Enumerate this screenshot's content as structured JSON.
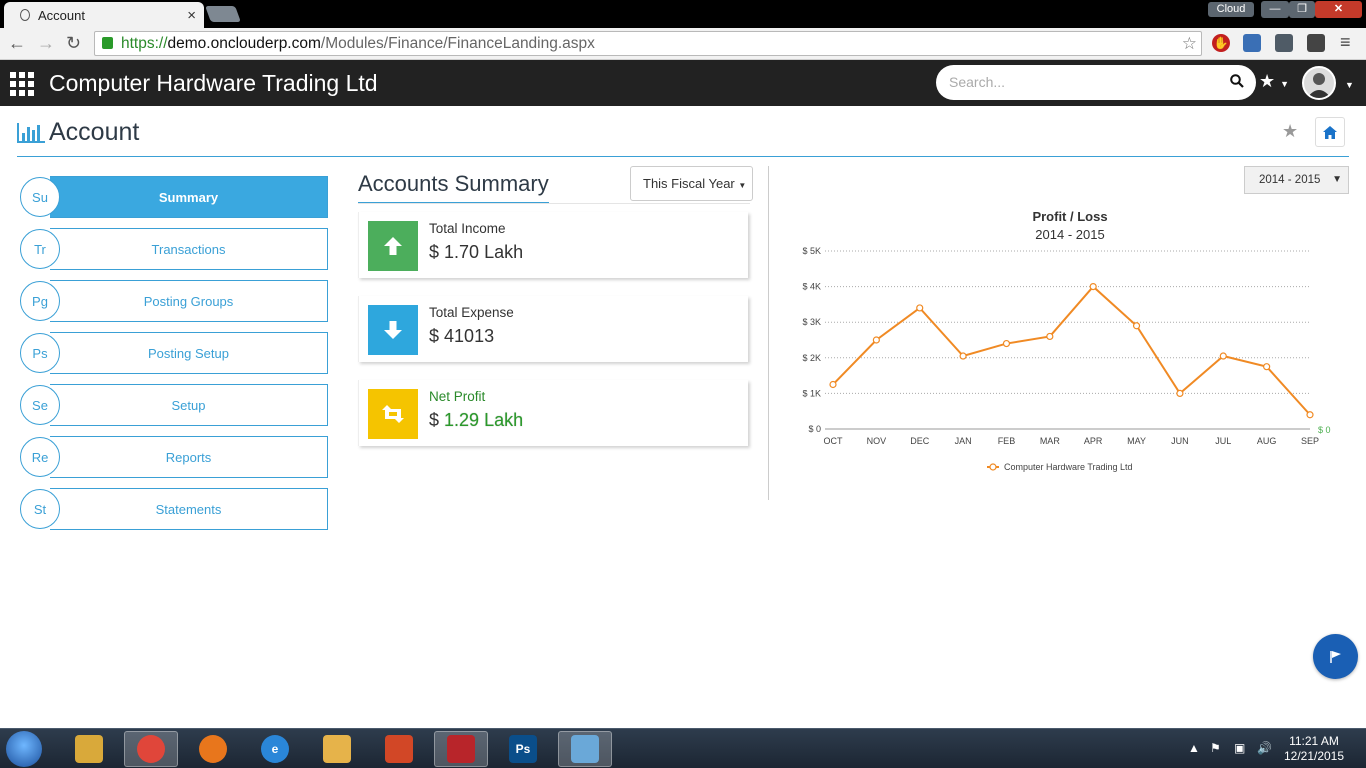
{
  "browser": {
    "tab_title": "Account",
    "tab_close": "×",
    "cloud_label": "Cloud",
    "win_close": "✕",
    "url_scheme": "https://",
    "url_host": "demo.onclouderp.com",
    "url_path": "/Modules/Finance/FinanceLanding.aspx"
  },
  "app": {
    "title": "Computer Hardware Trading Ltd",
    "search_placeholder": "Search..."
  },
  "page": {
    "title": "Account"
  },
  "menu": [
    {
      "abbr": "Su",
      "label": "Summary",
      "active": true
    },
    {
      "abbr": "Tr",
      "label": "Transactions",
      "active": false
    },
    {
      "abbr": "Pg",
      "label": "Posting Groups",
      "active": false
    },
    {
      "abbr": "Ps",
      "label": "Posting Setup",
      "active": false
    },
    {
      "abbr": "Se",
      "label": "Setup",
      "active": false
    },
    {
      "abbr": "Re",
      "label": "Reports",
      "active": false
    },
    {
      "abbr": "St",
      "label": "Statements",
      "active": false
    }
  ],
  "summary": {
    "title": "Accounts Summary",
    "period_button": "This Fiscal Year",
    "cards": [
      {
        "label": "Total Income",
        "currency": "$",
        "value": "1.70 Lakh",
        "color": "#4cae5c",
        "icon": "arrow-up-icon"
      },
      {
        "label": "Total Expense",
        "currency": "$",
        "value": "41013",
        "color": "#2ea7dd",
        "icon": "arrow-down-icon"
      },
      {
        "label": "Net Profit",
        "currency": "$",
        "value": "1.29 Lakh",
        "color": "#f5c400",
        "icon": "retweet-icon"
      }
    ]
  },
  "year_select": "2014 - 2015",
  "chart_data": {
    "type": "line",
    "title": "Profit / Loss",
    "subtitle": "2014 - 2015",
    "categories": [
      "OCT",
      "NOV",
      "DEC",
      "JAN",
      "FEB",
      "MAR",
      "APR",
      "MAY",
      "JUN",
      "JUL",
      "AUG",
      "SEP"
    ],
    "series": [
      {
        "name": "Computer Hardware Trading Ltd",
        "color": "#f08a24",
        "values": [
          1250,
          2500,
          3400,
          2050,
          2400,
          2600,
          4000,
          2900,
          1000,
          2050,
          1750,
          400
        ]
      }
    ],
    "ylim": [
      0,
      5000
    ],
    "y_ticks": [
      "$ 0",
      "$ 1K",
      "$ 2K",
      "$ 3K",
      "$ 4K",
      "$ 5K"
    ],
    "y_tick_values": [
      0,
      1000,
      2000,
      3000,
      4000,
      5000
    ],
    "right_axis_label": "$ 0",
    "grid": true,
    "legend": "bottom"
  },
  "taskbar": {
    "apps": [
      {
        "name": "explorer",
        "label": "",
        "color": "#d9a93a",
        "active": false
      },
      {
        "name": "chrome",
        "label": "",
        "color": "#e0463a",
        "active": true
      },
      {
        "name": "firefox",
        "label": "",
        "color": "#e8761c",
        "active": false
      },
      {
        "name": "ie",
        "label": "e",
        "color": "#2a86d8",
        "active": false
      },
      {
        "name": "outlook",
        "label": "",
        "color": "#e6b34a",
        "active": false
      },
      {
        "name": "powerpoint",
        "label": "",
        "color": "#d24726",
        "active": false
      },
      {
        "name": "filezilla",
        "label": "",
        "color": "#b8252a",
        "active": true
      },
      {
        "name": "photoshop",
        "label": "Ps",
        "color": "#0a4e8a",
        "active": false
      },
      {
        "name": "paint",
        "label": "",
        "color": "#6aa8d8",
        "active": true
      }
    ],
    "time": "11:21 AM",
    "date": "12/21/2015"
  }
}
